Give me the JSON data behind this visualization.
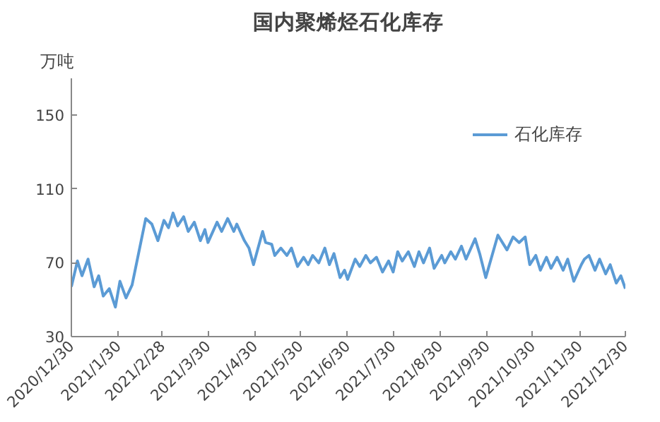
{
  "chart_data": {
    "type": "line",
    "title": "国内聚烯烃石化库存",
    "ylabel": "万吨",
    "x": [
      "2020-12-30",
      "2021-01-03",
      "2021-01-06",
      "2021-01-10",
      "2021-01-14",
      "2021-01-17",
      "2021-01-20",
      "2021-01-24",
      "2021-01-28",
      "2021-01-31",
      "2021-02-04",
      "2021-02-08",
      "2021-02-17",
      "2021-02-21",
      "2021-02-25",
      "2021-03-01",
      "2021-03-04",
      "2021-03-07",
      "2021-03-10",
      "2021-03-14",
      "2021-03-17",
      "2021-03-21",
      "2021-03-25",
      "2021-03-28",
      "2021-03-30",
      "2021-04-05",
      "2021-04-08",
      "2021-04-12",
      "2021-04-16",
      "2021-04-18",
      "2021-04-23",
      "2021-04-26",
      "2021-04-29",
      "2021-05-05",
      "2021-05-07",
      "2021-05-11",
      "2021-05-13",
      "2021-05-17",
      "2021-05-21",
      "2021-05-24",
      "2021-05-28",
      "2021-06-01",
      "2021-06-04",
      "2021-06-07",
      "2021-06-11",
      "2021-06-15",
      "2021-06-18",
      "2021-06-21",
      "2021-06-25",
      "2021-06-28",
      "2021-06-30",
      "2021-07-05",
      "2021-07-08",
      "2021-07-12",
      "2021-07-15",
      "2021-07-19",
      "2021-07-23",
      "2021-07-27",
      "2021-07-30",
      "2021-08-02",
      "2021-08-05",
      "2021-08-09",
      "2021-08-13",
      "2021-08-16",
      "2021-08-19",
      "2021-08-23",
      "2021-08-26",
      "2021-08-31",
      "2021-09-02",
      "2021-09-06",
      "2021-09-09",
      "2021-09-13",
      "2021-09-16",
      "2021-09-22",
      "2021-09-25",
      "2021-09-29",
      "2021-10-07",
      "2021-10-13",
      "2021-10-17",
      "2021-10-21",
      "2021-10-25",
      "2021-10-28",
      "2021-11-01",
      "2021-11-04",
      "2021-11-08",
      "2021-11-11",
      "2021-11-15",
      "2021-11-19",
      "2021-11-22",
      "2021-11-26",
      "2021-12-01",
      "2021-12-03",
      "2021-12-06",
      "2021-12-10",
      "2021-12-13",
      "2021-12-17",
      "2021-12-20",
      "2021-12-24",
      "2021-12-27",
      "2021-12-30"
    ],
    "series": [
      {
        "name": "石化库存",
        "color": "#5b9bd5",
        "values": [
          57,
          71,
          63,
          72,
          57,
          63,
          52,
          56,
          46,
          60,
          51,
          58,
          94,
          91,
          82,
          93,
          89,
          97,
          90,
          95,
          87,
          92,
          82,
          88,
          81,
          92,
          87,
          94,
          87,
          91,
          82,
          78,
          69,
          87,
          81,
          80,
          74,
          78,
          74,
          78,
          68,
          73,
          69,
          74,
          70,
          78,
          69,
          75,
          62,
          66,
          61,
          72,
          68,
          74,
          70,
          73,
          65,
          71,
          65,
          76,
          71,
          76,
          68,
          76,
          70,
          78,
          67,
          74,
          70,
          76,
          72,
          79,
          72,
          83,
          75,
          62,
          85,
          77,
          84,
          81,
          84,
          69,
          74,
          66,
          73,
          67,
          73,
          66,
          72,
          60,
          69,
          72,
          74,
          66,
          72,
          64,
          69,
          59,
          63,
          56
        ]
      }
    ],
    "xlim": [
      "2020-12-30",
      "2021-12-30"
    ],
    "xticks": [
      {
        "value": "2020-12-30",
        "label": "2020/12/30"
      },
      {
        "value": "2021-01-30",
        "label": "2021/1/30"
      },
      {
        "value": "2021-02-28",
        "label": "2021/2/28"
      },
      {
        "value": "2021-03-30",
        "label": "2021/3/30"
      },
      {
        "value": "2021-04-30",
        "label": "2021/4/30"
      },
      {
        "value": "2021-05-30",
        "label": "2021/5/30"
      },
      {
        "value": "2021-06-30",
        "label": "2021/6/30"
      },
      {
        "value": "2021-07-30",
        "label": "2021/7/30"
      },
      {
        "value": "2021-08-30",
        "label": "2021/8/30"
      },
      {
        "value": "2021-09-30",
        "label": "2021/9/30"
      },
      {
        "value": "2021-10-30",
        "label": "2021/10/30"
      },
      {
        "value": "2021-11-30",
        "label": "2021/11/30"
      },
      {
        "value": "2021-12-30",
        "label": "2021/12/30"
      }
    ],
    "ylim": [
      30,
      170
    ],
    "yticks": [
      30,
      70,
      110,
      150
    ],
    "grid": false,
    "legend": "top right",
    "marker": "none",
    "line_style": "solid"
  }
}
